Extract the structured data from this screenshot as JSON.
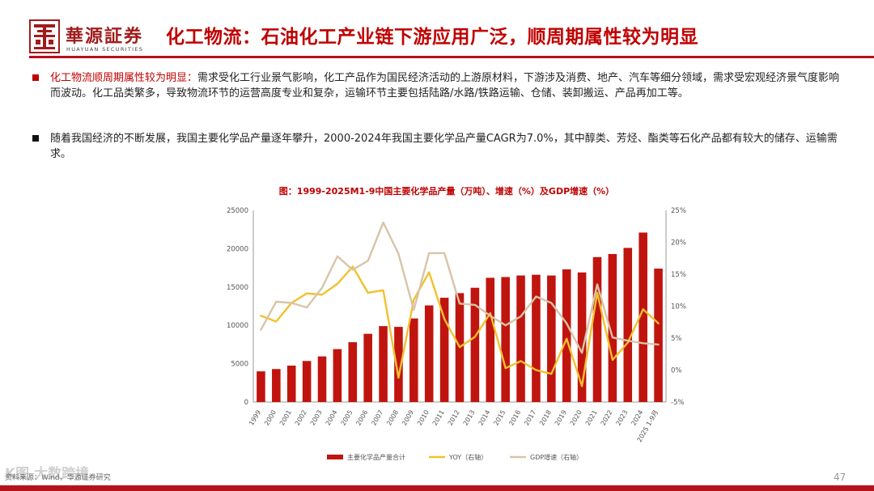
{
  "header": {
    "logo_cn": "華源証券",
    "logo_en": "HUAYUAN SECURITIES",
    "title": "化工物流：石油化工产业链下游应用广泛，顺周期属性较为明显"
  },
  "bullets": [
    {
      "highlight": "化工物流顺周期属性较为明显：",
      "text": "需求受化工行业景气影响，化工产品作为国民经济活动的上游原材料，下游涉及消费、地产、汽车等细分领域，需求受宏观经济景气度影响而波动。化工品类繁多，导致物流环节的运营高度专业和复杂，运输环节主要包括陆路/水路/铁路运输、仓储、装卸搬运、产品再加工等。"
    },
    {
      "highlight": "",
      "text": "随着我国经济的不断发展，我国主要化学品产量逐年攀升，2000-2024年我国主要化学品产量CAGR为7.0%，其中醇类、芳烃、酯类等石化产品都有较大的储存、运输需求。"
    }
  ],
  "footer": {
    "source": "资料来源：Wind，华源证券研究",
    "watermark": "K图 大数跨境",
    "page": "47"
  },
  "colors": {
    "brand": "#b5121b",
    "title": "#c00000",
    "bar": "#c0150f",
    "yoy": "#f2c12e",
    "gdp": "#d8c4a8"
  },
  "chart_data": {
    "type": "bar",
    "title": "图：1999-2025M1-9中国主要化学品产量（万吨）、增速（%）及GDP增速（%）",
    "categories": [
      "1999",
      "2000",
      "2001",
      "2002",
      "2003",
      "2004",
      "2005",
      "2006",
      "2007",
      "2008",
      "2009",
      "2010",
      "2011",
      "2012",
      "2013",
      "2014",
      "2015",
      "2016",
      "2017",
      "2018",
      "2019",
      "2020",
      "2021",
      "2022",
      "2023",
      "2024",
      "2025 1-9月"
    ],
    "left_axis": {
      "min": 0,
      "max": 25000,
      "step": 5000,
      "ticks": [
        "0",
        "5000",
        "10000",
        "15000",
        "20000",
        "25000"
      ]
    },
    "right_axis": {
      "min": -5,
      "max": 25,
      "step": 5,
      "ticks": [
        "-5%",
        "0%",
        "5%",
        "10%",
        "15%",
        "20%",
        "25%"
      ]
    },
    "series": [
      {
        "name": "主要化学品产量合计",
        "kind": "bar",
        "axis": "left",
        "values": [
          4000,
          4300,
          4750,
          5350,
          5950,
          6900,
          7800,
          8900,
          9900,
          9800,
          10900,
          12600,
          13600,
          14200,
          14900,
          16200,
          16300,
          16500,
          16600,
          16500,
          17300,
          16900,
          18900,
          19300,
          20100,
          22100,
          17400
        ]
      },
      {
        "name": "YOY（右轴）",
        "kind": "line",
        "axis": "right",
        "values": [
          8.5,
          7.6,
          10.5,
          12.0,
          11.8,
          13.5,
          16.2,
          12.1,
          12.5,
          -1.2,
          11.0,
          15.3,
          8.0,
          3.6,
          5.2,
          8.9,
          0.3,
          1.4,
          0.0,
          -0.6,
          4.9,
          -2.5,
          12.1,
          1.6,
          4.3,
          9.5,
          7.3
        ]
      },
      {
        "name": "GDP增速（右轴）",
        "kind": "line",
        "axis": "right",
        "values": [
          6.3,
          10.7,
          10.5,
          9.8,
          12.9,
          17.8,
          15.7,
          17.1,
          23.1,
          18.2,
          9.4,
          18.3,
          18.3,
          10.4,
          10.2,
          8.5,
          7.0,
          8.4,
          11.5,
          10.5,
          7.3,
          2.7,
          13.4,
          5.1,
          4.6,
          4.2,
          4.0
        ]
      }
    ]
  }
}
